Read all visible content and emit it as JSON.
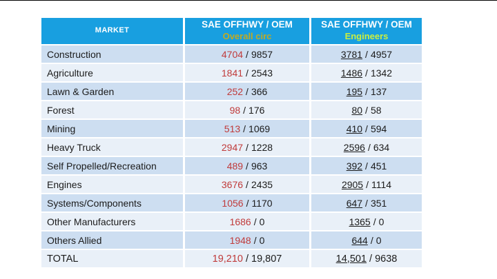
{
  "table": {
    "header": {
      "market_label": "MARKET",
      "col2_line1": "SAE OFFHWY / OEM",
      "col2_line2": "Overall circ",
      "col3_line1": "SAE OFFHWY / OEM",
      "col3_line2": "Engineers"
    },
    "separator": "/",
    "rows": [
      {
        "market": "Construction",
        "circ_first": "4704",
        "circ_second": "9857",
        "eng_first": "3781",
        "eng_second": "4957"
      },
      {
        "market": "Agriculture",
        "circ_first": "1841",
        "circ_second": "2543",
        "eng_first": "1486",
        "eng_second": "1342"
      },
      {
        "market": "Lawn & Garden",
        "circ_first": "252",
        "circ_second": "366",
        "eng_first": "195",
        "eng_second": "137"
      },
      {
        "market": "Forest",
        "circ_first": "98",
        "circ_second": "176",
        "eng_first": "80",
        "eng_second": "58"
      },
      {
        "market": "Mining",
        "circ_first": "513",
        "circ_second": "1069",
        "eng_first": "410",
        "eng_second": "594"
      },
      {
        "market": "Heavy Truck",
        "circ_first": "2947",
        "circ_second": "1228",
        "eng_first": "2596",
        "eng_second": "634"
      },
      {
        "market": "Self Propelled/Recreation",
        "circ_first": "489",
        "circ_second": "963",
        "eng_first": "392",
        "eng_second": "451"
      },
      {
        "market": "Engines",
        "circ_first": "3676",
        "circ_second": "2435",
        "eng_first": "2905",
        "eng_second": "1114"
      },
      {
        "market": "Systems/Components",
        "circ_first": "1056",
        "circ_second": "1170",
        "eng_first": "647",
        "eng_second": "351"
      },
      {
        "market": "Other Manufacturers",
        "circ_first": "1686",
        "circ_second": "0",
        "eng_first": "1365",
        "eng_second": "0"
      },
      {
        "market": "Others Allied",
        "circ_first": "1948",
        "circ_second": "0",
        "eng_first": "644",
        "eng_second": "0"
      },
      {
        "market": "TOTAL",
        "circ_first": "19,210",
        "circ_second": "19,807",
        "eng_first": "14,501",
        "eng_second": "9638"
      }
    ]
  },
  "colors": {
    "header_bg": "#189fe0",
    "row_odd_bg": "#cddef1",
    "row_even_bg": "#e9f0f8",
    "circ_first_color": "#c03a3a",
    "overall_circ_label_color": "#c2aa22",
    "engineers_label_color": "#cbee3f"
  }
}
